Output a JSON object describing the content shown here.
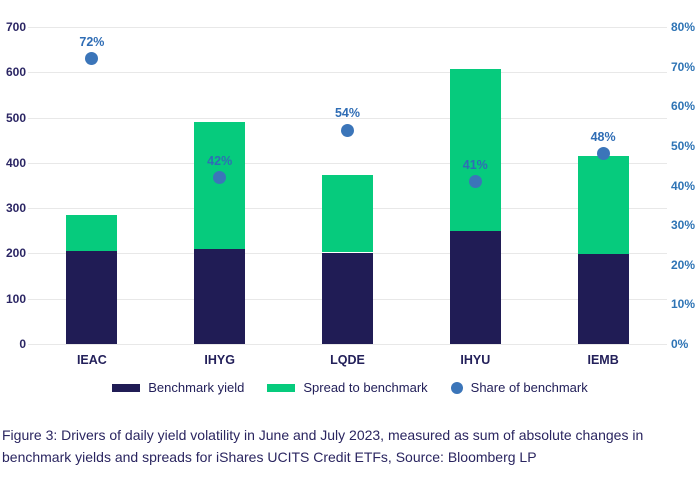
{
  "figure": {
    "caption": "Figure 3: Drivers of daily yield volatility in June and July 2023, measured as sum of absolute changes in benchmark yields and spreads for iShares UCITS Credit ETFs, Source: Bloomberg LP"
  },
  "colors": {
    "benchmark_yield_bar": "#201c55",
    "spread_bar": "#06cb7d",
    "share_dot": "#3b75b9",
    "share_label_text": "#2f6db5",
    "left_axis_text": "#2b2664",
    "right_axis_text": "#2e74b5",
    "gridline": "#e8e8e8",
    "caption_text": "#2a2560"
  },
  "chart_data": {
    "type": "bar",
    "subtype": "stacked-bar-with-scatter-overlay",
    "categories": [
      "IEAC",
      "IHYG",
      "LQDE",
      "IHYU",
      "IEMB"
    ],
    "series": [
      {
        "name": "Benchmark yield",
        "type": "bar",
        "stack": "yield",
        "axis": "left",
        "color": "#201c55",
        "values": [
          205,
          210,
          202,
          250,
          199
        ]
      },
      {
        "name": "Spread to benchmark",
        "type": "bar",
        "stack": "yield",
        "axis": "left",
        "color": "#06cb7d",
        "values": [
          80,
          280,
          172,
          358,
          216
        ]
      },
      {
        "name": "Share of benchmark",
        "type": "scatter",
        "axis": "right",
        "color": "#3b75b9",
        "values": [
          72,
          42,
          54,
          41,
          48
        ],
        "labels": [
          "72%",
          "42%",
          "54%",
          "41%",
          "48%"
        ]
      }
    ],
    "stacked_totals": [
      285,
      490,
      374,
      608,
      415
    ],
    "left_axis": {
      "min": 0,
      "max": 700,
      "step": 100,
      "ticks": [
        "0",
        "100",
        "200",
        "300",
        "400",
        "500",
        "600",
        "700"
      ]
    },
    "right_axis": {
      "min": 0,
      "max": 80,
      "step": 10,
      "ticks": [
        "0%",
        "10%",
        "20%",
        "30%",
        "40%",
        "50%",
        "60%",
        "70%",
        "80%"
      ]
    },
    "grid": true,
    "legend_position": "bottom",
    "title": "",
    "xlabel": "",
    "ylabel": ""
  }
}
